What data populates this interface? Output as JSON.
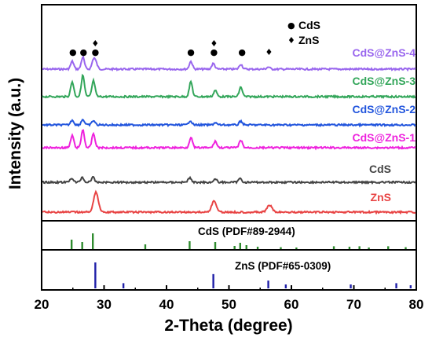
{
  "chart_data": {
    "type": "line",
    "xlabel": "2-Theta (degree)",
    "ylabel": "Intensity (a.u.)",
    "xlim": [
      20,
      80
    ],
    "x_ticks": [
      "20",
      "30",
      "40",
      "50",
      "60",
      "70",
      "80"
    ],
    "grid": false,
    "legend": {
      "placement": "top-right",
      "entries": [
        {
          "symbol": "●",
          "label": "CdS"
        },
        {
          "symbol": "♦",
          "label": "ZnS"
        }
      ]
    },
    "series": [
      {
        "name": "CdS@ZnS-4",
        "color": "#9966ee",
        "peaks": [
          {
            "x": 24.9,
            "h": 0.55
          },
          {
            "x": 26.6,
            "h": 0.85
          },
          {
            "x": 28.3,
            "h": 0.65
          },
          {
            "x": 28.7,
            "h": 0.4
          },
          {
            "x": 43.9,
            "h": 0.55
          },
          {
            "x": 47.5,
            "h": 0.4
          },
          {
            "x": 51.9,
            "h": 0.35
          },
          {
            "x": 56.3,
            "h": 0.15
          }
        ],
        "markers": [
          {
            "x": 25.0,
            "symbols": "●"
          },
          {
            "x": 26.7,
            "symbols": "●"
          },
          {
            "x": 28.6,
            "symbols": "♦●"
          },
          {
            "x": 43.9,
            "symbols": "●"
          },
          {
            "x": 47.6,
            "symbols": "♦●"
          },
          {
            "x": 52.1,
            "symbols": "●"
          },
          {
            "x": 56.4,
            "symbols": "♦"
          }
        ]
      },
      {
        "name": "CdS@ZnS-3",
        "color": "#33a65a",
        "peaks": [
          {
            "x": 24.9,
            "h": 0.7
          },
          {
            "x": 26.6,
            "h": 1.0
          },
          {
            "x": 28.3,
            "h": 0.75
          },
          {
            "x": 43.9,
            "h": 0.7
          },
          {
            "x": 47.8,
            "h": 0.3
          },
          {
            "x": 51.9,
            "h": 0.45
          }
        ]
      },
      {
        "name": "CdS@ZnS-2",
        "color": "#2255dd",
        "peaks": [
          {
            "x": 24.9,
            "h": 0.45
          },
          {
            "x": 26.6,
            "h": 0.5
          },
          {
            "x": 28.3,
            "h": 0.4
          },
          {
            "x": 43.8,
            "h": 0.4
          },
          {
            "x": 47.8,
            "h": 0.2
          },
          {
            "x": 51.9,
            "h": 0.35
          }
        ]
      },
      {
        "name": "CdS@ZnS-1",
        "color": "#ee22dd",
        "peaks": [
          {
            "x": 24.9,
            "h": 0.65
          },
          {
            "x": 26.6,
            "h": 0.95
          },
          {
            "x": 28.3,
            "h": 0.75
          },
          {
            "x": 43.9,
            "h": 0.55
          },
          {
            "x": 47.8,
            "h": 0.35
          },
          {
            "x": 51.9,
            "h": 0.4
          }
        ]
      },
      {
        "name": "CdS",
        "color": "#444444",
        "peaks": [
          {
            "x": 24.8,
            "h": 0.4
          },
          {
            "x": 26.5,
            "h": 0.45
          },
          {
            "x": 28.2,
            "h": 0.45
          },
          {
            "x": 43.7,
            "h": 0.4
          },
          {
            "x": 47.8,
            "h": 0.3
          },
          {
            "x": 51.8,
            "h": 0.35
          }
        ]
      },
      {
        "name": "ZnS",
        "color": "#e84444",
        "peaks": [
          {
            "x": 28.7,
            "h": 1.0
          },
          {
            "x": 47.6,
            "h": 0.55
          },
          {
            "x": 56.5,
            "h": 0.35
          }
        ]
      }
    ],
    "reference_patterns": [
      {
        "label": "CdS (PDF#89-2944)",
        "color": "#2e8b2e",
        "lines": [
          {
            "x": 24.8,
            "i": 0.6
          },
          {
            "x": 26.5,
            "i": 0.45
          },
          {
            "x": 28.2,
            "i": 1.0
          },
          {
            "x": 36.6,
            "i": 0.3
          },
          {
            "x": 43.7,
            "i": 0.5
          },
          {
            "x": 47.8,
            "i": 0.45
          },
          {
            "x": 50.9,
            "i": 0.2
          },
          {
            "x": 51.8,
            "i": 0.4
          },
          {
            "x": 52.8,
            "i": 0.25
          },
          {
            "x": 54.6,
            "i": 0.15
          },
          {
            "x": 58.3,
            "i": 0.12
          },
          {
            "x": 60.8,
            "i": 0.1
          },
          {
            "x": 66.8,
            "i": 0.18
          },
          {
            "x": 69.3,
            "i": 0.15
          },
          {
            "x": 70.9,
            "i": 0.18
          },
          {
            "x": 72.4,
            "i": 0.1
          },
          {
            "x": 75.5,
            "i": 0.18
          },
          {
            "x": 78.3,
            "i": 0.12
          }
        ]
      },
      {
        "label": "ZnS (PDF#65-0309)",
        "color": "#1f1fa8",
        "lines": [
          {
            "x": 28.6,
            "i": 1.0
          },
          {
            "x": 33.1,
            "i": 0.2
          },
          {
            "x": 47.5,
            "i": 0.55
          },
          {
            "x": 56.3,
            "i": 0.3
          },
          {
            "x": 59.1,
            "i": 0.15
          },
          {
            "x": 69.5,
            "i": 0.15
          },
          {
            "x": 76.8,
            "i": 0.2
          },
          {
            "x": 79.1,
            "i": 0.12
          }
        ]
      }
    ]
  }
}
